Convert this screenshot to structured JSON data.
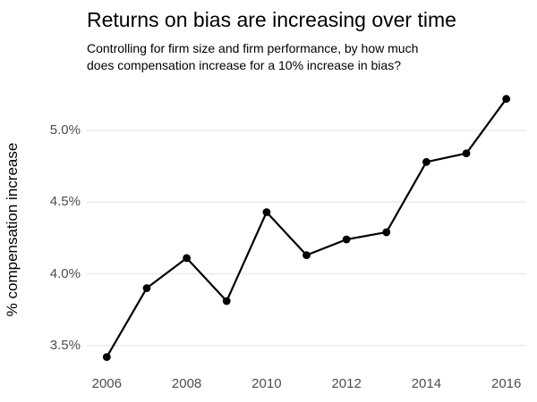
{
  "chart": {
    "title": "Returns on bias are increasing over time",
    "subtitle": "Controlling for firm size and firm performance, by how much\ndoes compensation increase for a 10% increase in bias?",
    "ylabel": "% compensation increase"
  },
  "chart_data": {
    "type": "line",
    "title": "Returns on bias are increasing over time",
    "subtitle": "Controlling for firm size and firm performance, by how much does compensation increase for a 10% increase in bias?",
    "x": [
      2006,
      2007,
      2008,
      2009,
      2010,
      2011,
      2012,
      2013,
      2014,
      2015,
      2016
    ],
    "y": [
      3.42,
      3.9,
      4.11,
      3.81,
      4.43,
      4.13,
      4.24,
      4.29,
      4.78,
      4.84,
      5.22
    ],
    "xlabel": "",
    "ylabel": "% compensation increase",
    "x_ticks": [
      2006,
      2008,
      2010,
      2012,
      2014,
      2016
    ],
    "y_ticks": [
      {
        "value": 3.5,
        "label": "3.5%"
      },
      {
        "value": 4.0,
        "label": "4.0%"
      },
      {
        "value": 4.5,
        "label": "4.5%"
      },
      {
        "value": 5.0,
        "label": "5.0%"
      }
    ],
    "xlim": [
      2005.5,
      2016.5
    ],
    "ylim": [
      3.33,
      5.31
    ],
    "grid": "horizontal-major-only",
    "legend": "none",
    "colors": {
      "line": "#000000",
      "point": "#000000",
      "grid": "#ebebeb",
      "tick_text": "#4d4d4d",
      "title_text": "#000000"
    }
  }
}
